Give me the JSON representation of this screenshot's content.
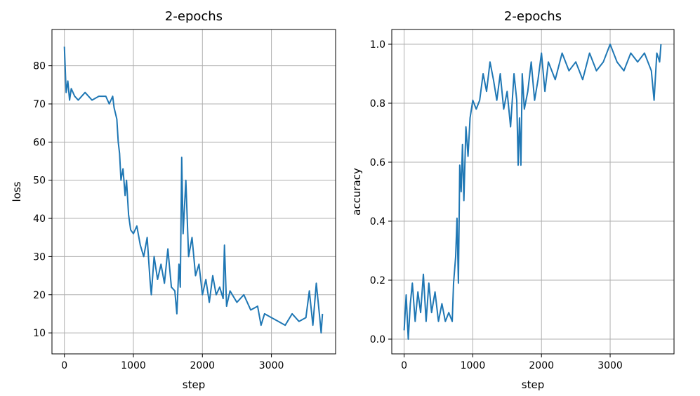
{
  "colors": {
    "line": "#1f77b4",
    "grid": "#b0b0b0",
    "axes": "#000000",
    "background": "#ffffff"
  },
  "chart_data": [
    {
      "type": "line",
      "title": "2-epochs",
      "xlabel": "step",
      "ylabel": "loss",
      "xlim": [
        -180,
        3930
      ],
      "ylim": [
        4.5,
        89.5
      ],
      "xticks": [
        0,
        1000,
        2000,
        3000
      ],
      "xtick_labels": [
        "0",
        "1000",
        "2000",
        "3000"
      ],
      "yticks": [
        10,
        20,
        30,
        40,
        50,
        60,
        70,
        80
      ],
      "ytick_labels": [
        "10",
        "20",
        "30",
        "40",
        "50",
        "60",
        "70",
        "80"
      ],
      "grid": true,
      "series": [
        {
          "x": [
            0,
            25,
            50,
            75,
            100,
            150,
            200,
            300,
            400,
            500,
            600,
            650,
            700,
            720,
            760,
            780,
            800,
            820,
            850,
            880,
            900,
            930,
            960,
            1000,
            1050,
            1100,
            1150,
            1200,
            1240,
            1260,
            1300,
            1350,
            1400,
            1450,
            1500,
            1550,
            1600,
            1630,
            1660,
            1680,
            1700,
            1720,
            1760,
            1800,
            1850,
            1900,
            1950,
            2000,
            2050,
            2100,
            2150,
            2200,
            2250,
            2300,
            2320,
            2350,
            2400,
            2500,
            2600,
            2700,
            2800,
            2850,
            2900,
            3000,
            3100,
            3200,
            3300,
            3400,
            3500,
            3550,
            3600,
            3650,
            3700,
            3720,
            3740
          ],
          "y": [
            85,
            73,
            76,
            71,
            74,
            72,
            71,
            73,
            71,
            72,
            72,
            70,
            72,
            69,
            66,
            60,
            57,
            50,
            53,
            46,
            50,
            41,
            37,
            36,
            38,
            33,
            30,
            35,
            24,
            20,
            30,
            24,
            28,
            23,
            32,
            22,
            21,
            15,
            28,
            22,
            56,
            36,
            50,
            30,
            35,
            25,
            28,
            20,
            24,
            18,
            25,
            20,
            22,
            19,
            33,
            17,
            21,
            18,
            20,
            16,
            17,
            12,
            15,
            14,
            13,
            12,
            15,
            13,
            14,
            21,
            12,
            23,
            14,
            10,
            15
          ]
        }
      ]
    },
    {
      "type": "line",
      "title": "2-epochs",
      "xlabel": "step",
      "ylabel": "accuracy",
      "xlim": [
        -180,
        3930
      ],
      "ylim": [
        -0.05,
        1.05
      ],
      "xticks": [
        0,
        1000,
        2000,
        3000
      ],
      "xtick_labels": [
        "0",
        "1000",
        "2000",
        "3000"
      ],
      "yticks": [
        0.0,
        0.2,
        0.4,
        0.6,
        0.8,
        1.0
      ],
      "ytick_labels": [
        "0.0",
        "0.2",
        "0.4",
        "0.6",
        "0.8",
        "1.0"
      ],
      "grid": true,
      "series": [
        {
          "x": [
            0,
            30,
            60,
            90,
            120,
            160,
            200,
            240,
            280,
            320,
            360,
            400,
            450,
            500,
            550,
            600,
            650,
            700,
            720,
            750,
            770,
            790,
            810,
            830,
            850,
            870,
            900,
            930,
            960,
            1000,
            1050,
            1100,
            1150,
            1200,
            1250,
            1300,
            1350,
            1400,
            1450,
            1500,
            1550,
            1600,
            1640,
            1660,
            1680,
            1700,
            1720,
            1750,
            1800,
            1850,
            1900,
            1950,
            2000,
            2050,
            2100,
            2200,
            2300,
            2400,
            2500,
            2600,
            2700,
            2800,
            2900,
            3000,
            3100,
            3200,
            3300,
            3400,
            3500,
            3600,
            3640,
            3680,
            3720,
            3740
          ],
          "y": [
            0.03,
            0.15,
            0.0,
            0.12,
            0.19,
            0.06,
            0.16,
            0.09,
            0.22,
            0.06,
            0.19,
            0.09,
            0.16,
            0.06,
            0.12,
            0.06,
            0.09,
            0.06,
            0.19,
            0.28,
            0.41,
            0.19,
            0.59,
            0.5,
            0.66,
            0.47,
            0.72,
            0.62,
            0.75,
            0.81,
            0.78,
            0.81,
            0.9,
            0.84,
            0.94,
            0.88,
            0.81,
            0.9,
            0.78,
            0.84,
            0.72,
            0.9,
            0.81,
            0.59,
            0.75,
            0.59,
            0.9,
            0.78,
            0.84,
            0.94,
            0.81,
            0.88,
            0.97,
            0.84,
            0.94,
            0.88,
            0.97,
            0.91,
            0.94,
            0.88,
            0.97,
            0.91,
            0.94,
            1.0,
            0.94,
            0.91,
            0.97,
            0.94,
            0.97,
            0.91,
            0.81,
            0.97,
            0.94,
            1.0
          ]
        }
      ]
    }
  ]
}
